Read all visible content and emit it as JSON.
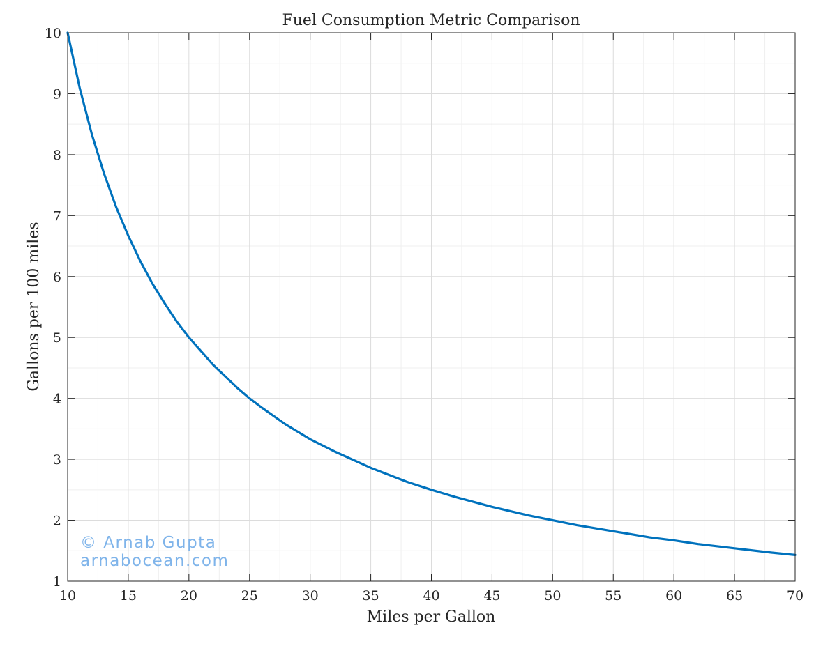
{
  "chart_data": {
    "type": "line",
    "title": "Fuel Consumption Metric Comparison",
    "xlabel": "Miles per Gallon",
    "ylabel": "Gallons per 100 miles",
    "xlim": [
      10,
      70
    ],
    "ylim": [
      1,
      10
    ],
    "x_ticks": [
      10,
      15,
      20,
      25,
      30,
      35,
      40,
      45,
      50,
      55,
      60,
      65,
      70
    ],
    "y_ticks": [
      1,
      2,
      3,
      4,
      5,
      6,
      7,
      8,
      9,
      10
    ],
    "x_minor_step": 2.5,
    "y_minor_step": 0.5,
    "grid": true,
    "grid_minor": true,
    "legend": "none",
    "series": [
      {
        "color": "#0072BD",
        "x": [
          10,
          11,
          12,
          13,
          14,
          15,
          16,
          17,
          18,
          19,
          20,
          22,
          24,
          25,
          26,
          28,
          30,
          32,
          35,
          38,
          40,
          42,
          45,
          48,
          50,
          52,
          55,
          58,
          60,
          62,
          65,
          68,
          70
        ],
        "y": [
          10,
          9.09,
          8.33,
          7.69,
          7.14,
          6.67,
          6.25,
          5.88,
          5.56,
          5.26,
          5,
          4.55,
          4.17,
          4,
          3.85,
          3.57,
          3.33,
          3.13,
          2.86,
          2.63,
          2.5,
          2.38,
          2.22,
          2.08,
          2,
          1.92,
          1.82,
          1.72,
          1.67,
          1.61,
          1.54,
          1.47,
          1.43
        ]
      }
    ]
  },
  "watermark": {
    "line1": "© Arnab Gupta",
    "line2": "arnabocean.com",
    "color": "#7fb4ea"
  },
  "colors": {
    "axes": "#262626",
    "grid_major": "#dcdcdc",
    "grid_minor": "#efefef",
    "line": "#0072BD"
  }
}
